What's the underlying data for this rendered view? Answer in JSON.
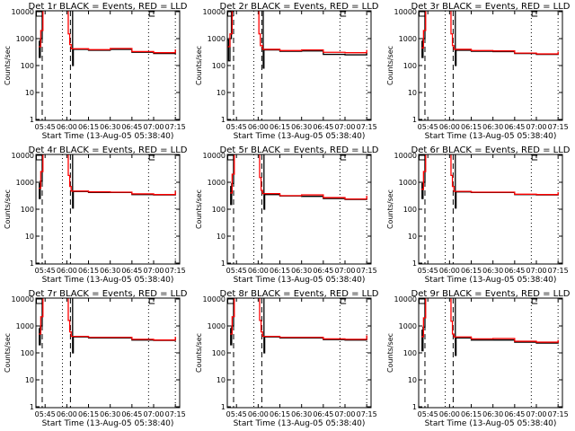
{
  "chart_data": [
    {
      "type": "line",
      "title": "Det 1r BLACK = Events, RED = LLD",
      "xlabel": "Start Time (13-Aug-05 05:38:40)",
      "ylabel": "Counts/sec",
      "red": [
        [
          "05:40:40",
          500
        ],
        [
          "05:42:00",
          2000
        ],
        [
          "05:43:30",
          12000
        ],
        [
          "06:00:00",
          12000
        ],
        [
          "06:01:00",
          1500
        ],
        [
          "06:02:00",
          600
        ],
        [
          "06:03:00",
          420
        ],
        [
          "06:15:00",
          390
        ],
        [
          "06:30:00",
          430
        ],
        [
          "06:45:00",
          330
        ],
        [
          "07:00:00",
          300
        ],
        [
          "07:15:00",
          400
        ]
      ],
      "black": [
        [
          "05:40:40",
          800
        ],
        [
          "05:41:00",
          200
        ],
        [
          "05:41:40",
          1000
        ],
        [
          "05:43:00",
          12000
        ],
        [
          "06:04:00",
          12000
        ],
        [
          "06:04:00",
          100
        ],
        [
          "06:04:30",
          400
        ],
        [
          "06:15:00",
          370
        ],
        [
          "06:30:00",
          400
        ],
        [
          "06:45:00",
          310
        ],
        [
          "07:00:00",
          280
        ],
        [
          "07:15:00",
          380
        ]
      ]
    },
    {
      "type": "line",
      "title": "Det 2r BLACK = Events, RED = LLD",
      "xlabel": "Start Time (13-Aug-05 05:38:40)",
      "ylabel": "Counts/sec",
      "red": [
        [
          "05:38:40",
          500
        ],
        [
          "05:40:30",
          1500
        ],
        [
          "05:42:00",
          12000
        ],
        [
          "05:59:00",
          12000
        ],
        [
          "06:00:30",
          1500
        ],
        [
          "06:01:30",
          550
        ],
        [
          "06:03:00",
          400
        ],
        [
          "06:15:00",
          360
        ],
        [
          "06:30:00",
          380
        ],
        [
          "06:45:00",
          310
        ],
        [
          "07:00:00",
          300
        ],
        [
          "07:05:00",
          300
        ],
        [
          "07:15:00",
          380
        ]
      ],
      "black": [
        [
          "05:38:40",
          900
        ],
        [
          "05:39:30",
          150
        ],
        [
          "05:40:30",
          1000
        ],
        [
          "05:41:30",
          12000
        ],
        [
          "06:03:30",
          12000
        ],
        [
          "06:03:30",
          80
        ],
        [
          "06:04:00",
          380
        ],
        [
          "06:15:00",
          340
        ],
        [
          "06:30:00",
          350
        ],
        [
          "06:45:00",
          260
        ],
        [
          "07:00:00",
          250
        ],
        [
          "07:15:00",
          300
        ]
      ]
    },
    {
      "type": "line",
      "title": "Det 3r BLACK = Events, RED = LLD",
      "xlabel": "Start Time (13-Aug-05 05:38:40)",
      "ylabel": "Counts/sec",
      "red": [
        [
          "05:40:40",
          450
        ],
        [
          "05:42:00",
          2000
        ],
        [
          "05:43:30",
          12000
        ],
        [
          "06:00:00",
          12000
        ],
        [
          "06:01:00",
          1500
        ],
        [
          "06:02:00",
          550
        ],
        [
          "06:03:00",
          400
        ],
        [
          "06:15:00",
          360
        ],
        [
          "06:30:00",
          350
        ],
        [
          "06:45:00",
          290
        ],
        [
          "07:00:00",
          270
        ],
        [
          "07:15:00",
          330
        ]
      ],
      "black": [
        [
          "05:40:40",
          800
        ],
        [
          "05:41:00",
          200
        ],
        [
          "05:41:40",
          1000
        ],
        [
          "05:43:00",
          12000
        ],
        [
          "06:04:00",
          12000
        ],
        [
          "06:04:00",
          100
        ],
        [
          "06:04:30",
          370
        ],
        [
          "06:15:00",
          340
        ],
        [
          "06:30:00",
          330
        ],
        [
          "06:45:00",
          280
        ],
        [
          "07:00:00",
          260
        ],
        [
          "07:15:00",
          300
        ]
      ]
    },
    {
      "type": "line",
      "title": "Det 4r BLACK = Events, RED = LLD",
      "xlabel": "Start Time (13-Aug-05 05:38:40)",
      "ylabel": "Counts/sec",
      "red": [
        [
          "05:40:40",
          600
        ],
        [
          "05:42:00",
          2500
        ],
        [
          "05:43:30",
          12000
        ],
        [
          "06:00:00",
          12000
        ],
        [
          "06:01:00",
          1800
        ],
        [
          "06:02:00",
          700
        ],
        [
          "06:03:00",
          470
        ],
        [
          "06:15:00",
          440
        ],
        [
          "06:30:00",
          430
        ],
        [
          "06:45:00",
          370
        ],
        [
          "07:00:00",
          350
        ],
        [
          "07:15:00",
          480
        ]
      ],
      "black": [
        [
          "05:40:40",
          900
        ],
        [
          "05:41:00",
          250
        ],
        [
          "05:41:40",
          1100
        ],
        [
          "05:43:00",
          12000
        ],
        [
          "06:04:00",
          12000
        ],
        [
          "06:04:00",
          110
        ],
        [
          "06:04:30",
          450
        ],
        [
          "06:15:00",
          420
        ],
        [
          "06:30:00",
          420
        ],
        [
          "06:45:00",
          350
        ],
        [
          "07:00:00",
          340
        ],
        [
          "07:15:00",
          450
        ]
      ]
    },
    {
      "type": "line",
      "title": "Det 5r BLACK = Events, RED = LLD",
      "xlabel": "Start Time (13-Aug-05 05:38:40)",
      "ylabel": "Counts/sec",
      "red": [
        [
          "05:40:40",
          400
        ],
        [
          "05:42:00",
          2000
        ],
        [
          "05:43:30",
          12000
        ],
        [
          "06:00:00",
          12000
        ],
        [
          "06:01:00",
          1500
        ],
        [
          "06:02:00",
          500
        ],
        [
          "06:03:00",
          380
        ],
        [
          "06:15:00",
          320
        ],
        [
          "06:30:00",
          340
        ],
        [
          "06:45:00",
          270
        ],
        [
          "07:00:00",
          240
        ],
        [
          "07:15:00",
          320
        ]
      ],
      "black": [
        [
          "05:40:40",
          700
        ],
        [
          "05:41:00",
          150
        ],
        [
          "05:41:40",
          900
        ],
        [
          "05:43:00",
          12000
        ],
        [
          "06:04:00",
          12000
        ],
        [
          "06:04:00",
          100
        ],
        [
          "06:04:30",
          350
        ],
        [
          "06:15:00",
          310
        ],
        [
          "06:30:00",
          300
        ],
        [
          "06:45:00",
          250
        ],
        [
          "07:00:00",
          230
        ],
        [
          "07:15:00",
          280
        ]
      ]
    },
    {
      "type": "line",
      "title": "Det 6r BLACK = Events, RED = LLD",
      "xlabel": "Start Time (13-Aug-05 05:38:40)",
      "ylabel": "Counts/sec",
      "red": [
        [
          "05:40:40",
          550
        ],
        [
          "05:42:00",
          2500
        ],
        [
          "05:43:30",
          12000
        ],
        [
          "06:00:00",
          12000
        ],
        [
          "06:01:00",
          1800
        ],
        [
          "06:02:00",
          700
        ],
        [
          "06:03:00",
          460
        ],
        [
          "06:15:00",
          430
        ],
        [
          "06:30:00",
          430
        ],
        [
          "06:45:00",
          360
        ],
        [
          "07:00:00",
          350
        ],
        [
          "07:15:00",
          430
        ]
      ],
      "black": [
        [
          "05:40:40",
          900
        ],
        [
          "05:41:00",
          250
        ],
        [
          "05:41:40",
          1000
        ],
        [
          "05:43:00",
          12000
        ],
        [
          "06:04:00",
          12000
        ],
        [
          "06:04:00",
          110
        ],
        [
          "06:04:30",
          440
        ],
        [
          "06:15:00",
          420
        ],
        [
          "06:30:00",
          420
        ],
        [
          "06:45:00",
          350
        ],
        [
          "07:00:00",
          340
        ],
        [
          "07:15:00",
          400
        ]
      ]
    },
    {
      "type": "line",
      "title": "Det 7r BLACK = Events, RED = LLD",
      "xlabel": "Start Time (13-Aug-05 05:38:40)",
      "ylabel": "Counts/sec",
      "red": [
        [
          "05:40:40",
          500
        ],
        [
          "05:42:00",
          2200
        ],
        [
          "05:43:30",
          12000
        ],
        [
          "06:00:00",
          12000
        ],
        [
          "06:01:00",
          1600
        ],
        [
          "06:02:00",
          600
        ],
        [
          "06:03:00",
          410
        ],
        [
          "06:15:00",
          380
        ],
        [
          "06:30:00",
          380
        ],
        [
          "06:45:00",
          320
        ],
        [
          "07:00:00",
          300
        ],
        [
          "07:15:00",
          400
        ]
      ],
      "black": [
        [
          "05:40:40",
          800
        ],
        [
          "05:41:00",
          200
        ],
        [
          "05:41:40",
          1000
        ],
        [
          "05:43:00",
          12000
        ],
        [
          "06:04:00",
          12000
        ],
        [
          "06:04:00",
          100
        ],
        [
          "06:04:30",
          390
        ],
        [
          "06:15:00",
          360
        ],
        [
          "06:30:00",
          360
        ],
        [
          "06:45:00",
          300
        ],
        [
          "07:00:00",
          290
        ],
        [
          "07:15:00",
          370
        ]
      ]
    },
    {
      "type": "line",
      "title": "Det 8r BLACK = Events, RED = LLD",
      "xlabel": "Start Time (13-Aug-05 05:38:40)",
      "ylabel": "Counts/sec",
      "red": [
        [
          "05:40:40",
          500
        ],
        [
          "05:42:00",
          2200
        ],
        [
          "05:43:30",
          12000
        ],
        [
          "06:00:00",
          12000
        ],
        [
          "06:01:00",
          1600
        ],
        [
          "06:02:00",
          600
        ],
        [
          "06:03:00",
          410
        ],
        [
          "06:15:00",
          380
        ],
        [
          "06:30:00",
          380
        ],
        [
          "06:45:00",
          330
        ],
        [
          "07:00:00",
          320
        ],
        [
          "07:15:00",
          450
        ]
      ],
      "black": [
        [
          "05:40:40",
          800
        ],
        [
          "05:41:00",
          200
        ],
        [
          "05:41:40",
          1000
        ],
        [
          "05:43:00",
          12000
        ],
        [
          "06:04:00",
          12000
        ],
        [
          "06:04:00",
          100
        ],
        [
          "06:04:30",
          390
        ],
        [
          "06:15:00",
          360
        ],
        [
          "06:30:00",
          360
        ],
        [
          "06:45:00",
          310
        ],
        [
          "07:00:00",
          300
        ],
        [
          "07:15:00",
          420
        ]
      ]
    },
    {
      "type": "line",
      "title": "Det 9r BLACK = Events, RED = LLD",
      "xlabel": "Start Time (13-Aug-05 05:38:40)",
      "ylabel": "Counts/sec",
      "red": [
        [
          "05:40:40",
          400
        ],
        [
          "05:42:00",
          2000
        ],
        [
          "05:43:30",
          12000
        ],
        [
          "06:00:00",
          12000
        ],
        [
          "06:01:00",
          1500
        ],
        [
          "06:02:00",
          500
        ],
        [
          "06:03:00",
          390
        ],
        [
          "06:15:00",
          330
        ],
        [
          "06:30:00",
          340
        ],
        [
          "06:45:00",
          270
        ],
        [
          "07:00:00",
          250
        ],
        [
          "07:15:00",
          300
        ]
      ],
      "black": [
        [
          "05:40:40",
          700
        ],
        [
          "05:41:00",
          120
        ],
        [
          "05:41:40",
          900
        ],
        [
          "05:43:00",
          12000
        ],
        [
          "06:04:00",
          12000
        ],
        [
          "06:04:00",
          80
        ],
        [
          "06:04:30",
          360
        ],
        [
          "06:15:00",
          300
        ],
        [
          "06:30:00",
          300
        ],
        [
          "06:45:00",
          250
        ],
        [
          "07:00:00",
          230
        ],
        [
          "07:15:00",
          270
        ]
      ]
    }
  ],
  "axes": {
    "xlim": [
      "05:38:40",
      "07:18:00"
    ],
    "ylim": [
      1,
      10000
    ],
    "yscale": "log",
    "xticks": [
      "05:45",
      "06:00",
      "06:15",
      "06:30",
      "06:45",
      "07:00",
      "07:15"
    ],
    "yticks": [
      [
        "1",
        1
      ],
      [
        "10",
        10
      ],
      [
        "100",
        100
      ],
      [
        "1000",
        1000
      ],
      [
        "10000",
        10000
      ]
    ],
    "dashed_lines": [
      "05:43:00",
      "06:02:30"
    ],
    "dotted_lines": [
      "05:57:00",
      "06:56:30",
      "07:15:00"
    ],
    "bracket_marks": [
      "05:39:00",
      "06:57:00"
    ],
    "grid": false
  },
  "colors": {
    "red_series": "#ff0000",
    "black_series": "#000000",
    "background": "#ffffff"
  }
}
